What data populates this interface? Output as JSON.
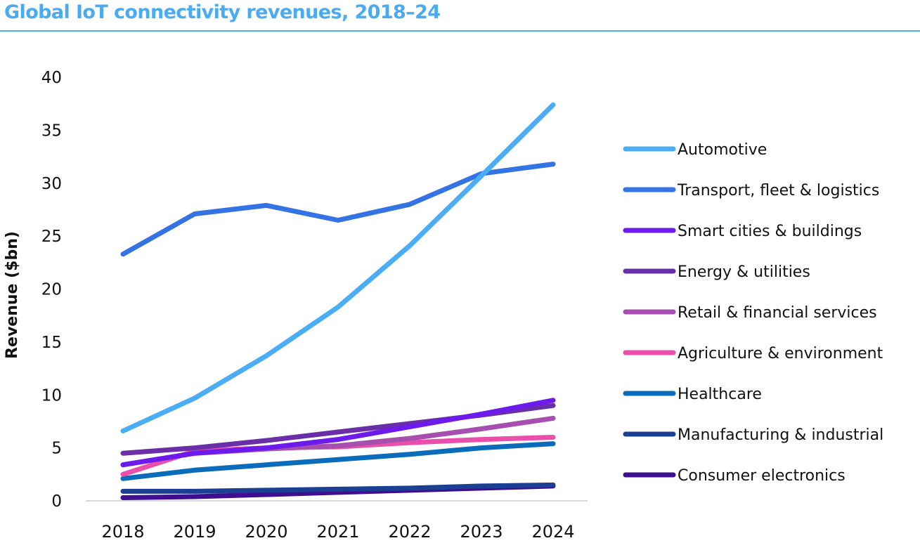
{
  "chart_data": {
    "type": "line",
    "title": "Global IoT connectivity revenues, 2018–24",
    "xlabel": "",
    "ylabel": "Revenue ($bn)",
    "ylim": [
      0,
      40
    ],
    "yticks": [
      "0",
      "5",
      "10",
      "15",
      "20",
      "25",
      "30",
      "35",
      "40"
    ],
    "ytick_values": [
      0,
      5,
      10,
      15,
      20,
      25,
      30,
      35,
      40
    ],
    "x": [
      "2018",
      "2019",
      "2020",
      "2021",
      "2022",
      "2023",
      "2024"
    ],
    "grid": false,
    "legend_position": "right",
    "series": [
      {
        "name": "Automotive",
        "color": "#4cadf7",
        "values": [
          6.6,
          9.7,
          13.7,
          18.3,
          24.1,
          30.7,
          37.4
        ]
      },
      {
        "name": "Transport, fleet & logistics",
        "color": "#3473e3",
        "values": [
          23.3,
          27.1,
          27.9,
          26.5,
          28.0,
          30.9,
          31.8
        ]
      },
      {
        "name": "Smart cities & buildings",
        "color": "#6d1aec",
        "values": [
          3.4,
          4.5,
          5.0,
          5.8,
          7.0,
          8.2,
          9.5
        ]
      },
      {
        "name": "Energy & utilities",
        "color": "#6a2ea8",
        "values": [
          4.5,
          5.0,
          5.7,
          6.5,
          7.3,
          8.1,
          9.0
        ]
      },
      {
        "name": "Retail & financial services",
        "color": "#a64fae",
        "values": [
          3.4,
          4.5,
          4.9,
          5.2,
          5.9,
          6.8,
          7.8
        ]
      },
      {
        "name": "Agriculture & environment",
        "color": "#ea4fac",
        "values": [
          2.5,
          4.7,
          5.0,
          5.1,
          5.5,
          5.8,
          6.0
        ]
      },
      {
        "name": "Healthcare",
        "color": "#0a6cbb",
        "values": [
          2.1,
          2.9,
          3.4,
          3.9,
          4.4,
          5.0,
          5.4
        ]
      },
      {
        "name": "Manufacturing & industrial",
        "color": "#1a3f93",
        "values": [
          0.9,
          0.9,
          1.0,
          1.1,
          1.2,
          1.4,
          1.5
        ]
      },
      {
        "name": "Consumer electronics",
        "color": "#3f0d8f",
        "values": [
          0.3,
          0.4,
          0.6,
          0.8,
          1.0,
          1.2,
          1.4
        ]
      }
    ]
  },
  "colors": {
    "title": "#4aabf0",
    "axis_line": "#d9d9d9",
    "text": "#111111"
  }
}
